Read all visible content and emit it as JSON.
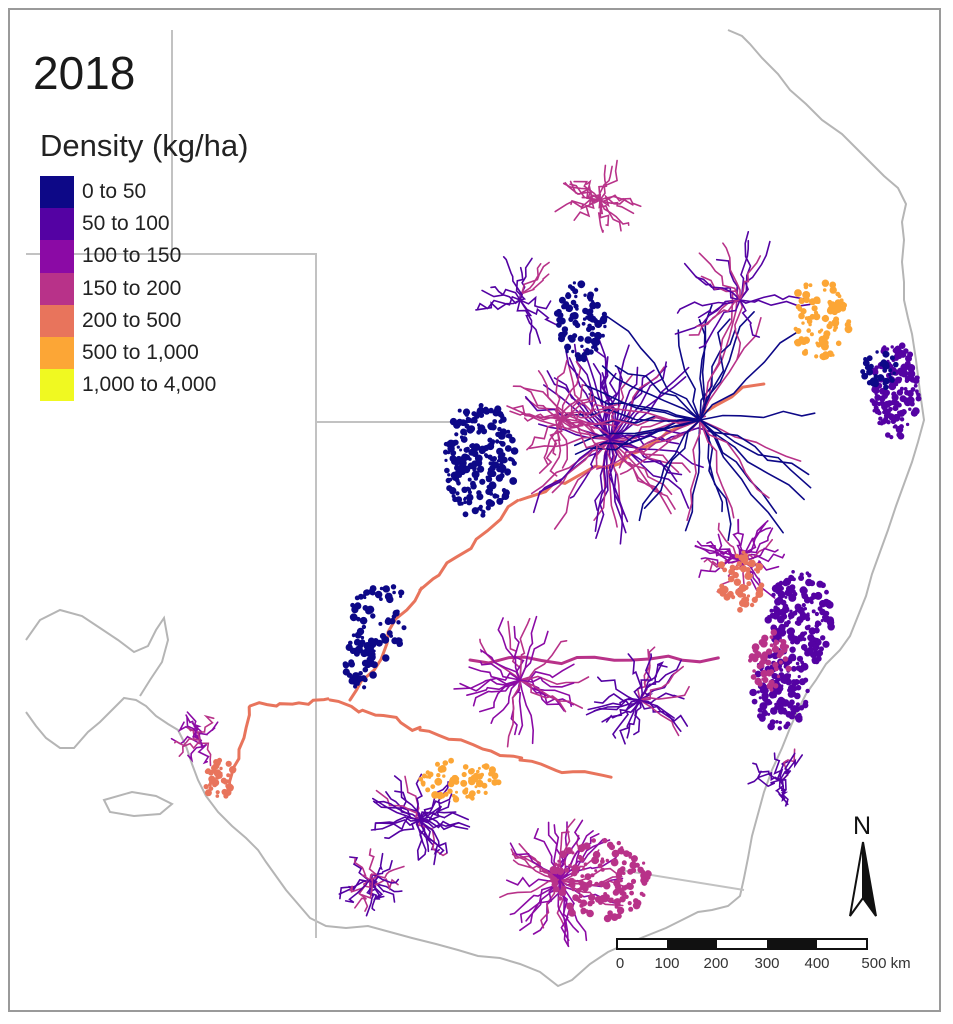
{
  "map": {
    "year": "2018",
    "legend": {
      "title": "Density (kg/ha)",
      "items": [
        {
          "label": "0 to 50",
          "color": "#0d0887"
        },
        {
          "label": "50 to 100",
          "color": "#5402a3"
        },
        {
          "label": "100 to 150",
          "color": "#8b0aa5"
        },
        {
          "label": "150 to 200",
          "color": "#b83289"
        },
        {
          "label": "200 to 500",
          "color": "#e8745c"
        },
        {
          "label": "500 to 1,000",
          "color": "#fca636"
        },
        {
          "label": "1,000 to 4,000",
          "color": "#f0f921"
        }
      ]
    },
    "north_arrow": {
      "label": "N"
    },
    "scale": {
      "ticks": [
        "0",
        "100",
        "200",
        "300",
        "400",
        "500 km"
      ]
    }
  }
}
